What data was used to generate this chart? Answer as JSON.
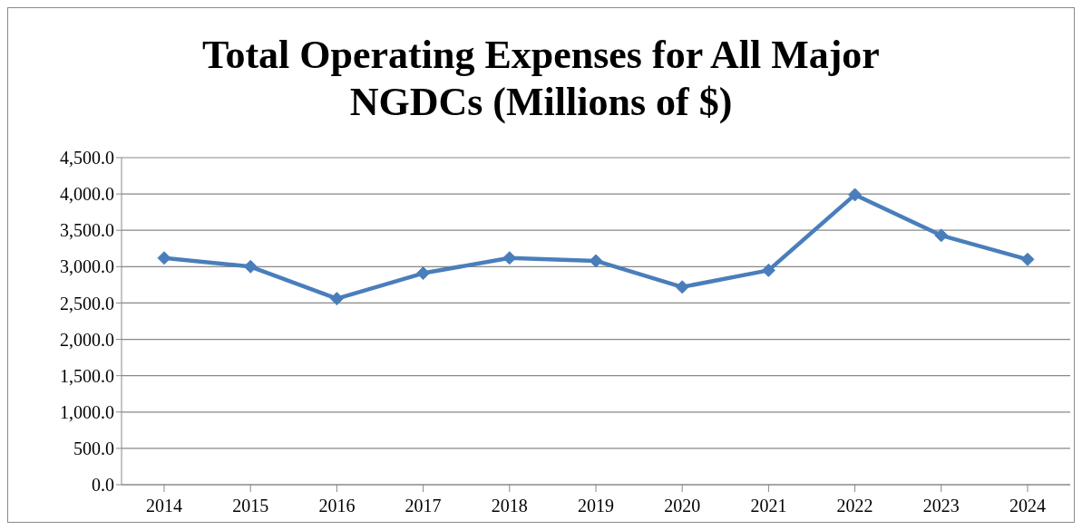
{
  "chart_data": {
    "type": "line",
    "title": "Total Operating Expenses for All Major NGDCs (Millions of $)",
    "categories": [
      "2014",
      "2015",
      "2016",
      "2017",
      "2018",
      "2019",
      "2020",
      "2021",
      "2022",
      "2023",
      "2024"
    ],
    "series": [
      {
        "color": "#4a7ebb",
        "values": [
          3120,
          3000,
          2560,
          2910,
          3120,
          3080,
          2720,
          2950,
          3990,
          3430,
          3100
        ]
      }
    ],
    "ylim": [
      0,
      4500
    ],
    "yticks": [
      {
        "value": 0,
        "label": "0.0"
      },
      {
        "value": 500,
        "label": "500.0"
      },
      {
        "value": 1000,
        "label": "1,000.0"
      },
      {
        "value": 1500,
        "label": "1,500.0"
      },
      {
        "value": 2000,
        "label": "2,000.0"
      },
      {
        "value": 2500,
        "label": "2,500.0"
      },
      {
        "value": 3000,
        "label": "3,000.0"
      },
      {
        "value": 3500,
        "label": "3,500.0"
      },
      {
        "value": 4000,
        "label": "4,000.0"
      },
      {
        "value": 4500,
        "label": "4,500.0"
      }
    ],
    "grid": "y",
    "legend": false,
    "marker": "diamond",
    "line_style": "solid"
  }
}
